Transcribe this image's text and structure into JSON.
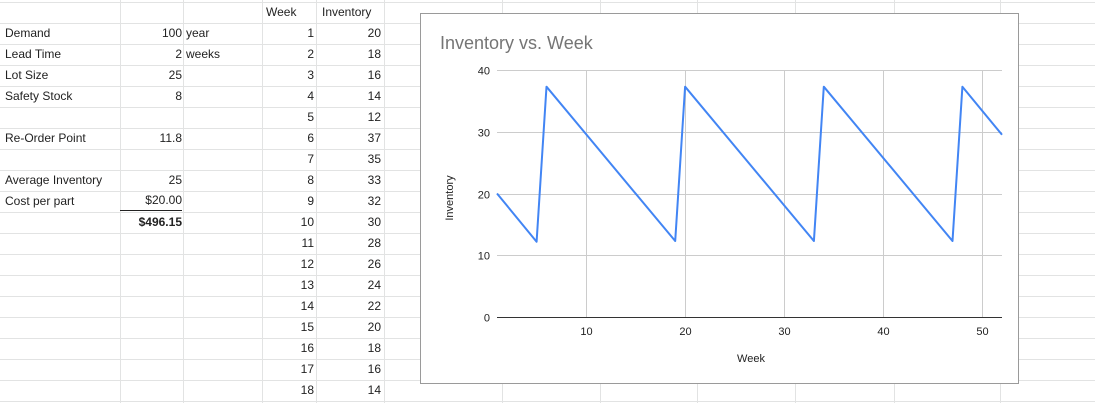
{
  "columns": {
    "week_header": "Week",
    "inventory_header": "Inventory"
  },
  "params": [
    {
      "label": "Demand",
      "value": "100",
      "unit": "year"
    },
    {
      "label": "Lead Time",
      "value": "2",
      "unit": "weeks"
    },
    {
      "label": "Lot Size",
      "value": "25",
      "unit": ""
    },
    {
      "label": "Safety Stock",
      "value": "8",
      "unit": ""
    },
    {
      "label": "Re-Order Point",
      "value": "11.8",
      "unit": ""
    },
    {
      "label": "Average Inventory",
      "value": "25",
      "unit": ""
    },
    {
      "label": "Cost per part",
      "value": "$20.00",
      "unit": ""
    }
  ],
  "total_cost": "$496.15",
  "weeks": [
    "1",
    "2",
    "3",
    "4",
    "5",
    "6",
    "7",
    "8",
    "9",
    "10",
    "11",
    "12",
    "13",
    "14",
    "15",
    "16",
    "17",
    "18"
  ],
  "inventory": [
    "20",
    "18",
    "16",
    "14",
    "12",
    "37",
    "35",
    "33",
    "32",
    "30",
    "28",
    "26",
    "24",
    "22",
    "20",
    "18",
    "16",
    "14"
  ],
  "colors": {
    "line": "#4285f4",
    "grid": "#e2e3e3",
    "title": "#757575"
  },
  "chart_data": {
    "type": "line",
    "title": "Inventory vs. Week",
    "xlabel": "Week",
    "ylabel": "Inventory",
    "xlim": [
      1,
      52
    ],
    "ylim": [
      0,
      40
    ],
    "xticks": [
      10,
      20,
      30,
      40,
      50
    ],
    "yticks": [
      0,
      10,
      20,
      30,
      40
    ],
    "grid": true,
    "series": [
      {
        "values": [
          [
            1,
            20
          ],
          [
            5,
            12.2
          ],
          [
            6,
            37.3
          ],
          [
            19,
            12.3
          ],
          [
            20,
            37.3
          ],
          [
            33,
            12.3
          ],
          [
            34,
            37.3
          ],
          [
            47,
            12.3
          ],
          [
            48,
            37.3
          ],
          [
            52,
            29.5
          ]
        ]
      }
    ]
  }
}
